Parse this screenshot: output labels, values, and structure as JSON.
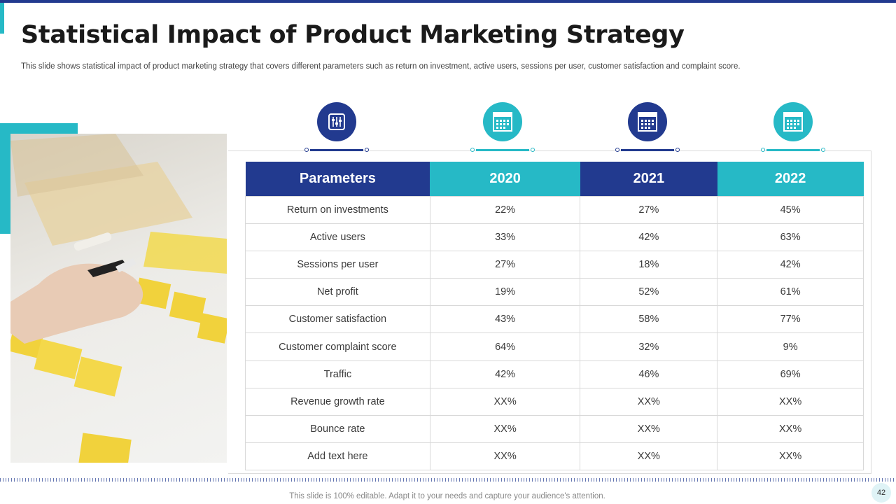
{
  "slide": {
    "title": "Statistical Impact of Product Marketing Strategy",
    "subtitle": "This slide shows statistical impact of product marketing strategy that covers different parameters such as return on investment, active users, sessions per user, customer satisfaction and complaint score.",
    "footer": "This slide is 100% editable. Adapt it to your needs and capture your audience's attention.",
    "page_number": "42"
  },
  "colors": {
    "navy": "#223a8f",
    "teal": "#26b9c6"
  },
  "column_icons": [
    "sliders-icon",
    "calendar-icon",
    "calendar-icon",
    "calendar-icon"
  ],
  "table": {
    "headers": [
      "Parameters",
      "2020",
      "2021",
      "2022"
    ],
    "rows": [
      [
        "Return on investments",
        "22%",
        "27%",
        "45%"
      ],
      [
        "Active users",
        "33%",
        "42%",
        "63%"
      ],
      [
        "Sessions per user",
        "27%",
        "18%",
        "42%"
      ],
      [
        "Net profit",
        "19%",
        "52%",
        "61%"
      ],
      [
        "Customer satisfaction",
        "43%",
        "58%",
        "77%"
      ],
      [
        "Customer complaint score",
        "64%",
        "32%",
        "9%"
      ],
      [
        "Traffic",
        "42%",
        "46%",
        "69%"
      ],
      [
        "Revenue growth rate",
        "XX%",
        "XX%",
        "XX%"
      ],
      [
        "Bounce rate",
        "XX%",
        "XX%",
        "XX%"
      ],
      [
        "Add text here",
        "XX%",
        "XX%",
        "XX%"
      ]
    ]
  }
}
